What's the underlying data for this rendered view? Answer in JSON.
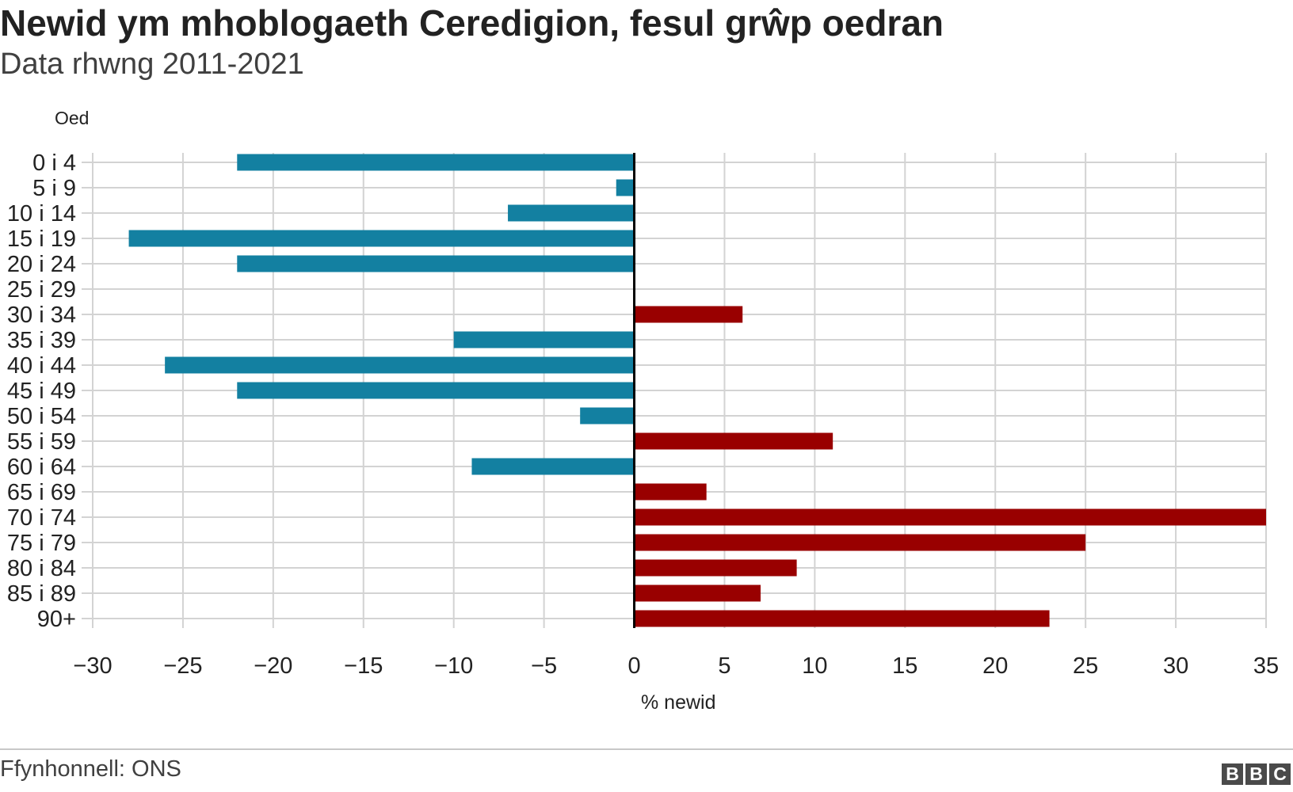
{
  "header": {
    "title": "Newid ym mhoblogaeth Ceredigion, fesul grŵp oedran",
    "subtitle": "Data rhwng 2011-2021"
  },
  "footer": {
    "source": "Ffynhonnell: ONS",
    "logo_letters": [
      "B",
      "B",
      "C"
    ]
  },
  "chart_data": {
    "type": "bar",
    "orientation": "horizontal",
    "y_axis_title": "Oed",
    "x_axis_title": "% newid",
    "categories": [
      "0 i 4",
      "5 i 9",
      "10 i 14",
      "15 i 19",
      "20 i 24",
      "25 i 29",
      "30 i 34",
      "35 i 39",
      "40 i 44",
      "45 i 49",
      "50 i 54",
      "55 i 59",
      "60 i 64",
      "65 i 69",
      "70 i 74",
      "75 i 79",
      "80 i 84",
      "85 i 89",
      "90+"
    ],
    "values": [
      -22,
      -1,
      -7,
      -28,
      -22,
      0,
      6,
      -10,
      -26,
      -22,
      -3,
      11,
      -9,
      4,
      35,
      25,
      9,
      7,
      23
    ],
    "xlim": [
      -30,
      35
    ],
    "x_ticks": [
      -30,
      -25,
      -20,
      -15,
      -10,
      -5,
      0,
      5,
      10,
      15,
      20,
      25,
      30,
      35
    ],
    "x_tick_labels": [
      "−30",
      "−25",
      "−20",
      "−15",
      "−10",
      "−5",
      "0",
      "5",
      "10",
      "15",
      "20",
      "25",
      "30",
      "35"
    ],
    "grid": true,
    "colors": {
      "negative": "#1380a1",
      "positive": "#990000",
      "zero_line": "#000000",
      "grid": "#d3d3d3"
    }
  }
}
